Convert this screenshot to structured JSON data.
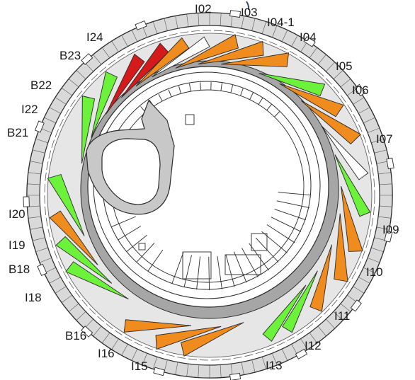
{
  "colors": {
    "orange": "#f08c1e",
    "green": "#6cf23a",
    "red": "#d41a1a",
    "ring_grey": "#d9d9d9",
    "band_grey": "#a6a6a6",
    "line": "#2a2a2a",
    "marker": "#3a4a6a"
  },
  "labels": {
    "I02": "I02",
    "I03": "I03",
    "I04_1": "I04-1",
    "I04": "I04",
    "I05": "I05",
    "I06": "I06",
    "I07": "I07",
    "I09": "I09",
    "I10": "I10",
    "I11": "I11",
    "I12": "I12",
    "I13": "I13",
    "I15": "I15",
    "I16": "I16",
    "B16": "B16",
    "I18": "I18",
    "B18": "B18",
    "I19": "I19",
    "I20": "I20",
    "B21": "B21",
    "I22": "I22",
    "B22": "B22",
    "B23": "B23",
    "I24": "I24"
  }
}
